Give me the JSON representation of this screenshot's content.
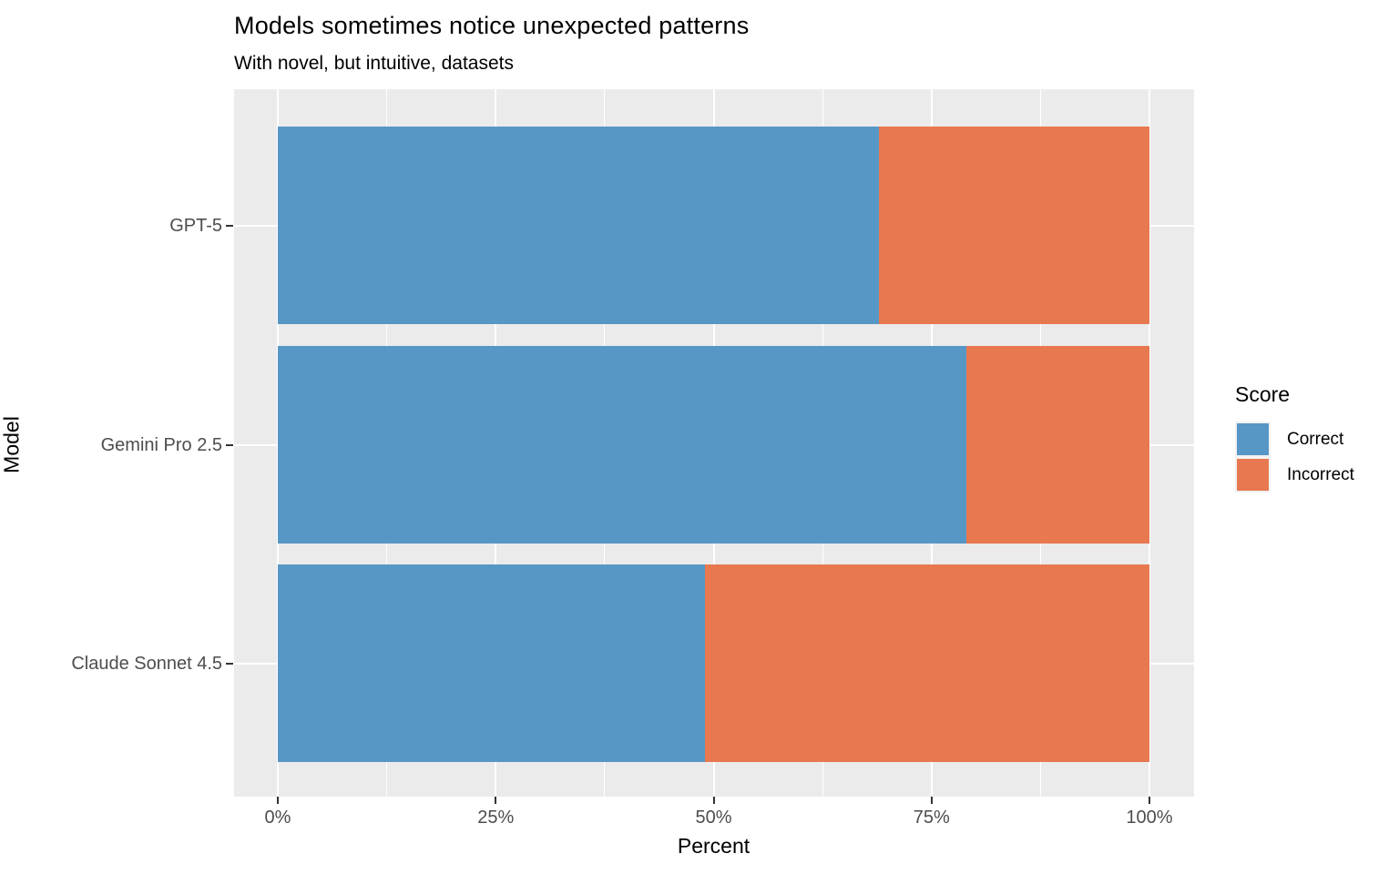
{
  "chart_data": {
    "type": "bar",
    "orientation": "horizontal",
    "stacked": true,
    "units": "percent",
    "title": "Models sometimes notice unexpected patterns",
    "subtitle": "With novel, but intuitive, datasets",
    "xlabel": "Percent",
    "ylabel": "Model",
    "categories": [
      "GPT-5",
      "Gemini Pro 2.5",
      "Claude Sonnet 4.5"
    ],
    "series": [
      {
        "name": "Correct",
        "color": "#5697C5",
        "values": [
          69,
          79,
          49
        ]
      },
      {
        "name": "Incorrect",
        "color": "#E87850",
        "values": [
          31,
          21,
          51
        ]
      }
    ],
    "xlim": [
      0,
      100
    ],
    "x_tick_values": [
      0,
      25,
      50,
      75,
      100
    ],
    "x_tick_labels": [
      "0%",
      "25%",
      "50%",
      "75%",
      "100%"
    ],
    "legend": {
      "title": "Score",
      "position": "right",
      "entries": [
        "Correct",
        "Incorrect"
      ]
    },
    "style": {
      "panel_background": "#EBEBEB",
      "gridline_color": "#FFFFFF",
      "tick_label_color": "#4D4D4D",
      "tick_mark_color": "#333333",
      "text_color": "#000000",
      "grid_minor": true
    }
  }
}
